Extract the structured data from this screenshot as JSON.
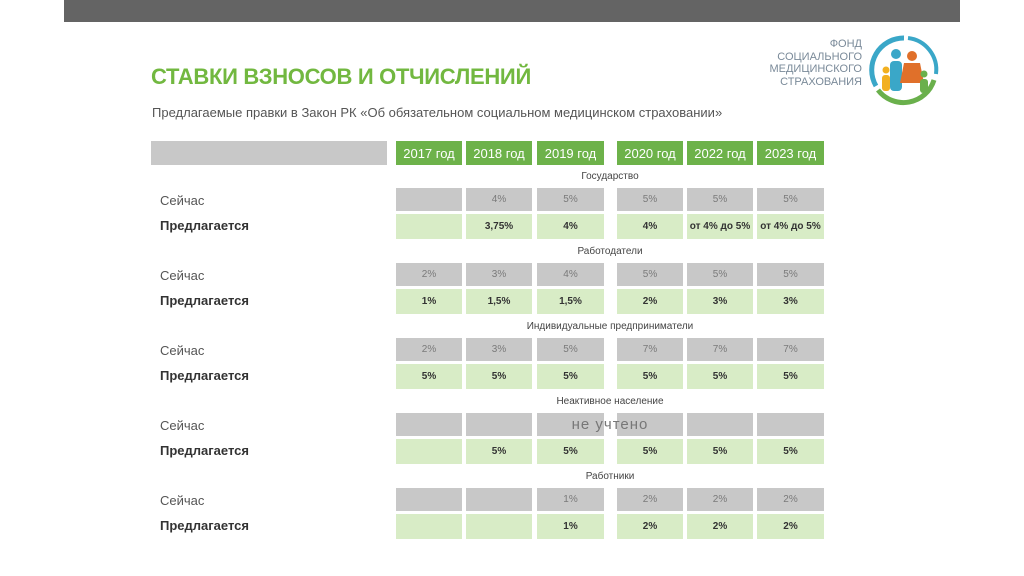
{
  "logo_text": [
    "ФОНД",
    "СОЦИАЛЬНОГО",
    "МЕДИЦИНСКОГО",
    "СТРАХОВАНИЯ"
  ],
  "title": "СТАВКИ ВЗНОСОВ И ОТЧИСЛЕНИЙ",
  "subtitle": "Предлагаемые правки в Закон РК «Об обязательном социальном медицинском страховании»",
  "table": {
    "columns": [
      "2017 год",
      "2018 год",
      "2019 год",
      "2020 год",
      "2022 год",
      "2023 год"
    ],
    "row_labels": [
      "Сейчас",
      "Предлагается"
    ],
    "sections": [
      {
        "name": "Государство",
        "current": [
          null,
          "4%",
          "5%",
          "5%",
          "5%",
          "5%"
        ],
        "proposed": [
          null,
          "3,75%",
          "4%",
          "4%",
          "от 4% до 5%",
          "от 4% до 5%"
        ]
      },
      {
        "name": "Работодатели",
        "current": [
          "2%",
          "3%",
          "4%",
          "5%",
          "5%",
          "5%"
        ],
        "proposed": [
          "1%",
          "1,5%",
          "1,5%",
          "2%",
          "3%",
          "3%"
        ]
      },
      {
        "name": "Индивидуальные предприниматели",
        "current": [
          "2%",
          "3%",
          "5%",
          "7%",
          "7%",
          "7%"
        ],
        "proposed": [
          "5%",
          "5%",
          "5%",
          "5%",
          "5%",
          "5%"
        ]
      },
      {
        "name": "Неактивное население",
        "current": [
          null,
          null,
          null,
          null,
          null,
          null
        ],
        "note": "не учтено",
        "proposed": [
          null,
          "5%",
          "5%",
          "5%",
          "5%",
          "5%"
        ]
      },
      {
        "name": "Работники",
        "current": [
          null,
          null,
          "1%",
          "2%",
          "2%",
          "2%"
        ],
        "proposed": [
          null,
          null,
          "1%",
          "2%",
          "2%",
          "2%"
        ]
      }
    ]
  }
}
